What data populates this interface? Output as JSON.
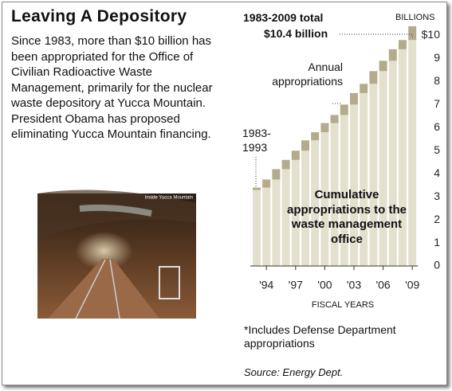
{
  "header": {
    "title": "Leaving A Depository",
    "text": "Since 1983, more than $10 billion has been appropriated for the Office of Civilian Radioactive Waste Management, primarily for the nuclear waste depository at Yucca Mountain. President Obama has proposed eliminating Yucca Mountain financing."
  },
  "photo": {
    "caption": "Inside Yucca Mountain"
  },
  "chart_data": {
    "type": "stacked-cumulative-bar",
    "y_label": "BILLIONS",
    "x_label": "FISCAL YEARS",
    "annotations": {
      "total_label": "1983-2009 total",
      "total_value": "$10.4 billion",
      "annual": "Annual appropriations",
      "first": "1983-1993",
      "cumulative": "Cumulative appropriations to the waste management office"
    },
    "categories": [
      null,
      "'94",
      null,
      null,
      "'97",
      null,
      null,
      "'00",
      null,
      null,
      "'03",
      null,
      null,
      "'06",
      null,
      null,
      "'09"
    ],
    "values": [
      3.4,
      0.35,
      0.45,
      0.4,
      0.4,
      0.45,
      0.35,
      0.4,
      0.35,
      0.45,
      0.5,
      0.4,
      0.55,
      0.45,
      0.5,
      0.4,
      0.6
    ],
    "colors": {
      "cumulative": "#e4e0ce",
      "annual": "#b3ab8c"
    },
    "ylim": [
      0,
      10.5
    ],
    "yticks": [
      0,
      1,
      2,
      3,
      4,
      5,
      6,
      7,
      8,
      9,
      {
        "value": 10,
        "label": "$10"
      }
    ]
  },
  "footer": {
    "note": "*Includes Defense Department appropriations",
    "source": "Source: Energy Dept."
  }
}
